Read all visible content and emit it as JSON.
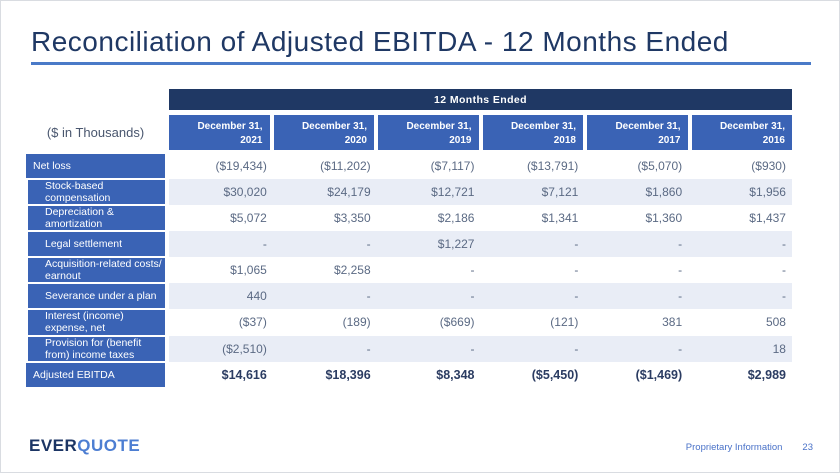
{
  "title": "Reconciliation of Adjusted EBITDA - 12 Months Ended",
  "table": {
    "units_label": "($ in Thousands)",
    "span_header": "12 Months Ended",
    "columns": [
      {
        "line1": "December 31,",
        "year": "2021"
      },
      {
        "line1": "December 31,",
        "year": "2020"
      },
      {
        "line1": "December 31,",
        "year": "2019"
      },
      {
        "line1": "December 31,",
        "year": "2018"
      },
      {
        "line1": "December 31,",
        "year": "2017"
      },
      {
        "line1": "December 31,",
        "year": "2016"
      }
    ],
    "rows": [
      {
        "label": "Net loss",
        "values": [
          "($19,434)",
          "($11,202)",
          "($7,117)",
          "($13,791)",
          "($5,070)",
          "($930)"
        ]
      },
      {
        "label": "Stock-based compensation",
        "values": [
          "$30,020",
          "$24,179",
          "$12,721",
          "$7,121",
          "$1,860",
          "$1,956"
        ]
      },
      {
        "label": "Depreciation & amortization",
        "values": [
          "$5,072",
          "$3,350",
          "$2,186",
          "$1,341",
          "$1,360",
          "$1,437"
        ]
      },
      {
        "label": "Legal settlement",
        "values": [
          "-",
          "-",
          "$1,227",
          "-",
          "-",
          "-"
        ]
      },
      {
        "label": "Acquisition-related costs/ earnout",
        "values": [
          "$1,065",
          "$2,258",
          "-",
          "-",
          "-",
          "-"
        ]
      },
      {
        "label": "Severance under a plan",
        "values": [
          "440",
          "-",
          "-",
          "-",
          "-",
          "-"
        ]
      },
      {
        "label": "Interest (income) expense, net",
        "values": [
          "($37)",
          "(189)",
          "($669)",
          "(121)",
          "381",
          "508"
        ]
      },
      {
        "label": "Provision for (benefit from) income taxes",
        "values": [
          "($2,510)",
          "-",
          "-",
          "-",
          "-",
          "18"
        ]
      },
      {
        "label": "Adjusted EBITDA",
        "values": [
          "$14,616",
          "$18,396",
          "$8,348",
          "($5,450)",
          "($1,469)",
          "$2,989"
        ]
      }
    ]
  },
  "footer": {
    "logo_ever": "EVER",
    "logo_quote": "QUOTE",
    "note": "Proprietary Information",
    "page": "23"
  },
  "colors": {
    "navy_band": "#1f3864",
    "header_blue": "#3a63b5",
    "row_alt": "#e9edf6",
    "value_text": "#5b6a84",
    "total_text": "#2b3c62",
    "title_underline": "#4a7ac8",
    "footer_text": "#4a72c8",
    "logo_ever": "#1c3564",
    "logo_quote": "#4d7ed2"
  }
}
